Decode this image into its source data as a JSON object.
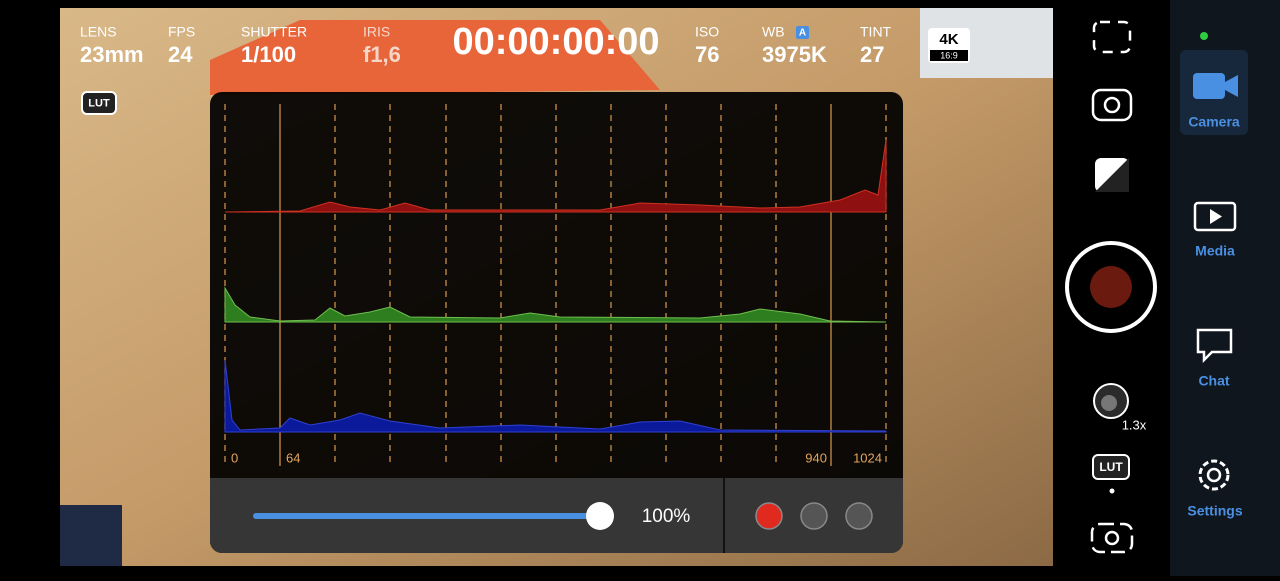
{
  "top_bar": {
    "items": [
      {
        "label": "LENS",
        "value": "23mm"
      },
      {
        "label": "FPS",
        "value": "24"
      },
      {
        "label": "SHUTTER",
        "value": "1/100"
      },
      {
        "label": "IRIS",
        "value": "f1,6"
      },
      {
        "label": "ISO",
        "value": "76"
      },
      {
        "label": "WB",
        "badge": "A",
        "value": "3975K"
      },
      {
        "label": "TINT",
        "value": "27"
      }
    ],
    "timecode": "00:00:00:00",
    "resolution": "4K",
    "aspect": "16:9"
  },
  "lut_badge": "LUT",
  "histogram": {
    "scale_labels": [
      "0",
      "64",
      "940",
      "1024"
    ]
  },
  "controls": {
    "opacity": "100%"
  },
  "right_controls": {
    "zoom": "1.3x",
    "lut": "LUT"
  },
  "nav": [
    {
      "label": "Camera"
    },
    {
      "label": "Media"
    },
    {
      "label": "Chat"
    },
    {
      "label": "Settings"
    }
  ]
}
